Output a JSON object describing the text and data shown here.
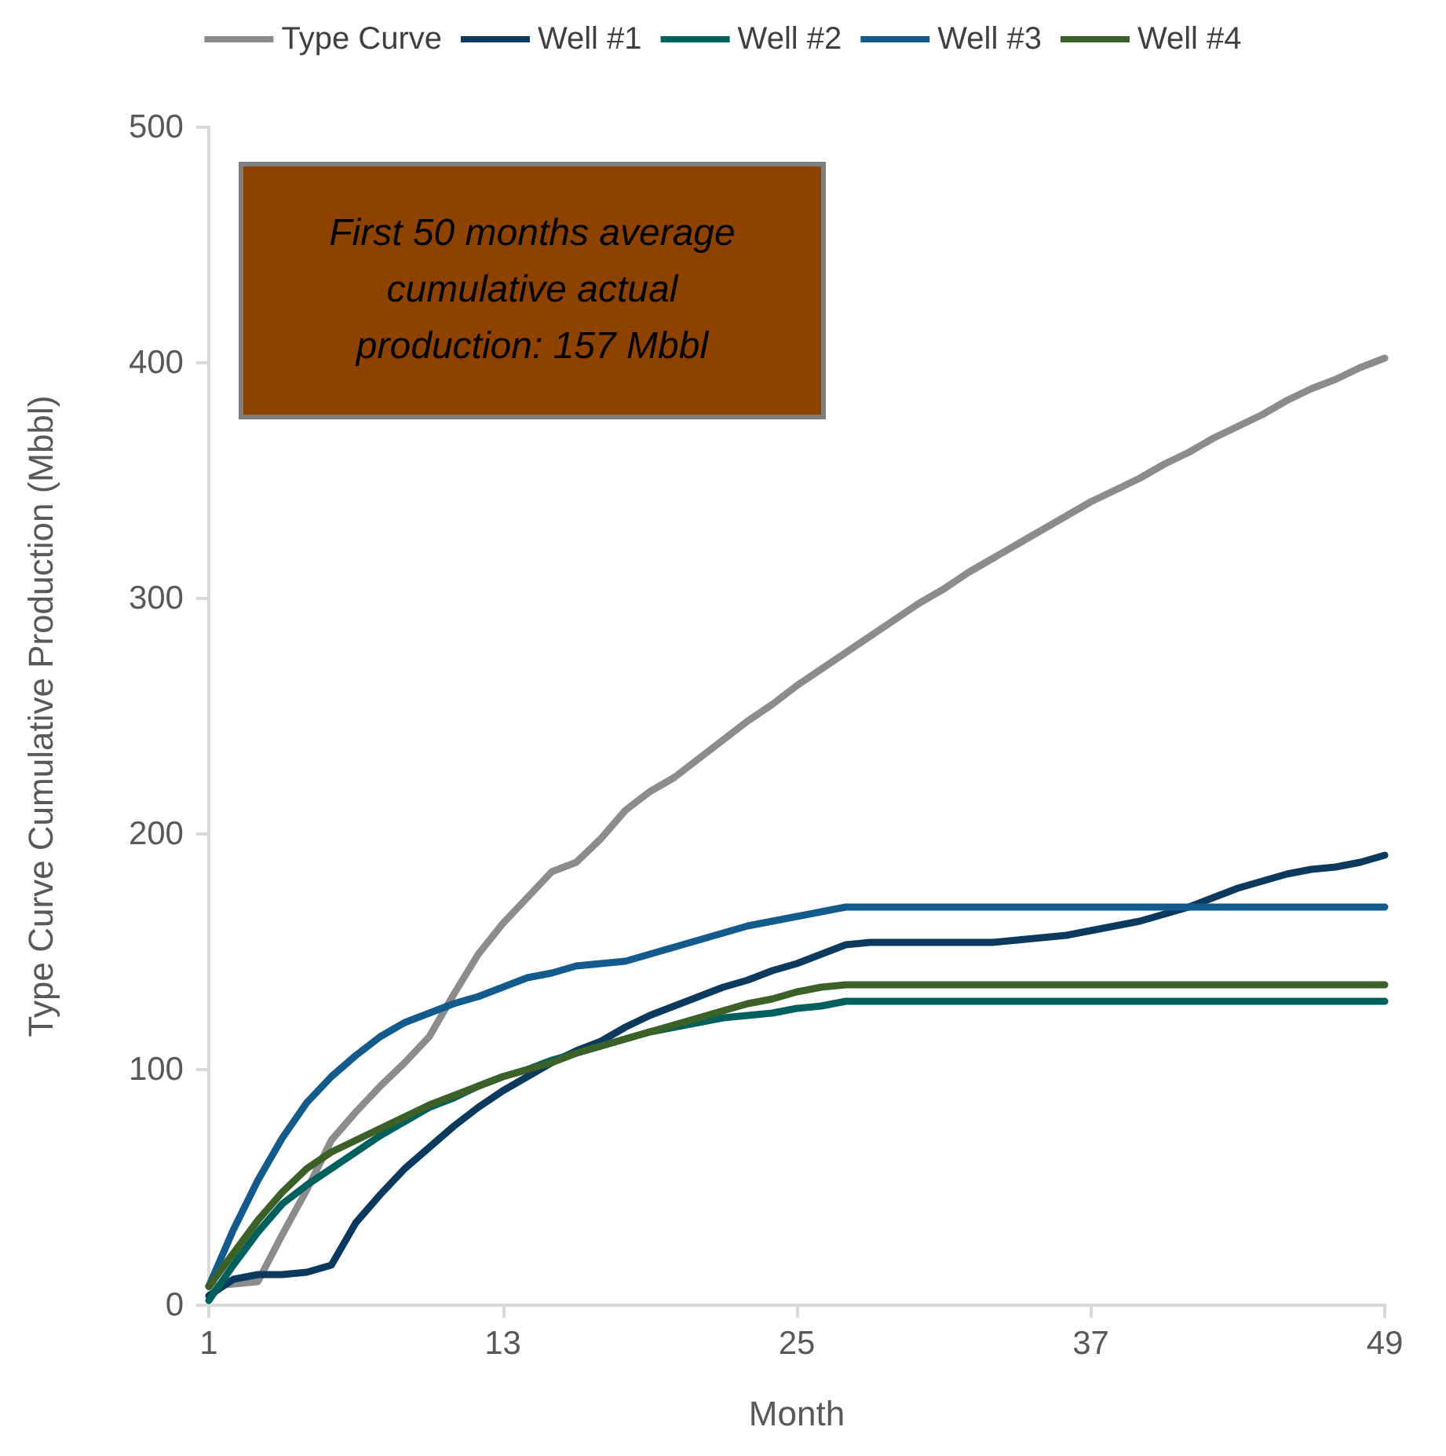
{
  "chart_data": {
    "type": "line",
    "xlabel": "Month",
    "ylabel": "Type Curve Cumulative Production (Mbbl)",
    "x": [
      1,
      2,
      3,
      4,
      5,
      6,
      7,
      8,
      9,
      10,
      11,
      12,
      13,
      14,
      15,
      16,
      17,
      18,
      19,
      20,
      21,
      22,
      23,
      24,
      25,
      26,
      27,
      28,
      29,
      30,
      31,
      32,
      33,
      34,
      35,
      36,
      37,
      38,
      39,
      40,
      41,
      42,
      43,
      44,
      45,
      46,
      47,
      48,
      49
    ],
    "series": [
      {
        "name": "Type Curve",
        "color": "#8c8c8c",
        "values": [
          8,
          9,
          10,
          30,
          49,
          70,
          82,
          93,
          103,
          114,
          132,
          149,
          162,
          173,
          184,
          188,
          198,
          210,
          218,
          224,
          232,
          240,
          248,
          255,
          263,
          270,
          277,
          284,
          291,
          298,
          304,
          311,
          317,
          323,
          329,
          335,
          341,
          346,
          351,
          357,
          362,
          368,
          373,
          378,
          384,
          389,
          393,
          398,
          402
        ]
      },
      {
        "name": "Well #1",
        "color": "#0b3a5e",
        "values": [
          4,
          11,
          13,
          13,
          14,
          17,
          35,
          47,
          58,
          67,
          76,
          84,
          91,
          97,
          103,
          108,
          112,
          118,
          123,
          127,
          131,
          135,
          138,
          142,
          145,
          149,
          153,
          154,
          154,
          154,
          154,
          154,
          154,
          155,
          156,
          157,
          159,
          161,
          163,
          166,
          169,
          173,
          177,
          180,
          183,
          185,
          186,
          188,
          191
        ]
      },
      {
        "name": "Well #2",
        "color": "#00605e",
        "values": [
          2,
          17,
          31,
          43,
          51,
          58,
          65,
          72,
          78,
          84,
          88,
          93,
          97,
          100,
          104,
          107,
          110,
          113,
          116,
          118,
          120,
          122,
          123,
          124,
          126,
          127,
          129,
          129,
          129,
          129,
          129,
          129,
          129,
          129,
          129,
          129,
          129,
          129,
          129,
          129,
          129,
          129,
          129,
          129,
          129,
          129,
          129,
          129,
          129
        ]
      },
      {
        "name": "Well #3",
        "color": "#135b8c",
        "values": [
          8,
          32,
          53,
          71,
          86,
          97,
          106,
          114,
          120,
          124,
          128,
          131,
          135,
          139,
          141,
          144,
          145,
          146,
          149,
          152,
          155,
          158,
          161,
          163,
          165,
          167,
          169,
          169,
          169,
          169,
          169,
          169,
          169,
          169,
          169,
          169,
          169,
          169,
          169,
          169,
          169,
          169,
          169,
          169,
          169,
          169,
          169,
          169,
          169
        ]
      },
      {
        "name": "Well #4",
        "color": "#3b6128",
        "values": [
          8,
          22,
          36,
          48,
          58,
          65,
          70,
          75,
          80,
          85,
          89,
          93,
          97,
          100,
          103,
          107,
          110,
          113,
          116,
          119,
          122,
          125,
          128,
          130,
          133,
          135,
          136,
          136,
          136,
          136,
          136,
          136,
          136,
          136,
          136,
          136,
          136,
          136,
          136,
          136,
          136,
          136,
          136,
          136,
          136,
          136,
          136,
          136,
          136
        ]
      }
    ],
    "xlim": [
      1,
      49
    ],
    "xticks": [
      1,
      13,
      25,
      37,
      49
    ],
    "ylim": [
      0,
      500
    ],
    "yticks": [
      0,
      100,
      200,
      300,
      400,
      500
    ],
    "grid": false,
    "legend": "top",
    "marker": "none",
    "line_style": "solid",
    "annotations": [
      "First 50 months average cumulative actual production: 157 Mbbl"
    ]
  }
}
